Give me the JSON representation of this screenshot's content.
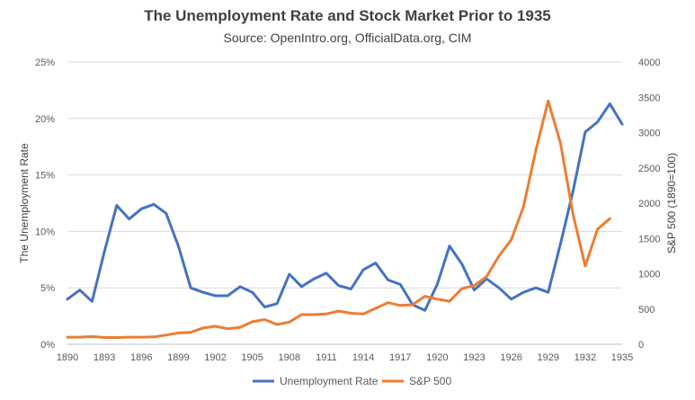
{
  "chart_data": {
    "type": "line",
    "title": "The Unemployment Rate  and Stock Market Prior to 1935",
    "subtitle": "Source: OpenIntro.org, OfficialData.org, CIM",
    "ylabel": "The Unemployment Rate",
    "y2label": "S&P 500 (1890=100)",
    "xlabel": "",
    "x_ticks": [
      "1890",
      "1893",
      "1896",
      "1899",
      "1902",
      "1905",
      "1908",
      "1911",
      "1914",
      "1917",
      "1920",
      "1923",
      "1926",
      "1929",
      "1932",
      "1935"
    ],
    "y_ticks": [
      "0%",
      "5%",
      "10%",
      "15%",
      "20%",
      "25%"
    ],
    "y2_ticks": [
      "0",
      "500",
      "1000",
      "1500",
      "2000",
      "2500",
      "3000",
      "3500",
      "4000"
    ],
    "ylim": [
      0,
      25
    ],
    "y2lim": [
      0,
      4000
    ],
    "xlim": [
      1890,
      1935
    ],
    "grid": true,
    "legend_position": "bottom",
    "x": [
      1890,
      1891,
      1892,
      1893,
      1894,
      1895,
      1896,
      1897,
      1898,
      1899,
      1900,
      1901,
      1902,
      1903,
      1904,
      1905,
      1906,
      1907,
      1908,
      1909,
      1910,
      1911,
      1912,
      1913,
      1914,
      1915,
      1916,
      1917,
      1918,
      1919,
      1920,
      1921,
      1922,
      1923,
      1924,
      1925,
      1926,
      1927,
      1928,
      1929,
      1930,
      1931,
      1932,
      1933,
      1934,
      1935
    ],
    "series": [
      {
        "name": "Unemployment Rate",
        "axis": "left",
        "color": "#4472C4",
        "values": [
          4.0,
          4.8,
          3.8,
          8.2,
          12.3,
          11.1,
          12.0,
          12.4,
          11.6,
          8.7,
          5.0,
          4.6,
          4.3,
          4.3,
          5.1,
          4.6,
          3.3,
          3.6,
          6.2,
          5.1,
          5.8,
          6.3,
          5.2,
          4.9,
          6.6,
          7.2,
          5.7,
          5.3,
          3.5,
          3.0,
          5.3,
          8.7,
          7.1,
          4.8,
          5.8,
          5.0,
          4.0,
          4.6,
          5.0,
          4.6,
          8.9,
          13.5,
          18.8,
          19.7,
          21.3,
          19.5
        ]
      },
      {
        "name": "S&P 500",
        "axis": "right",
        "color": "#ED7D31",
        "values": [
          100,
          100,
          110,
          95,
          95,
          100,
          100,
          105,
          130,
          160,
          170,
          230,
          255,
          220,
          240,
          320,
          350,
          280,
          315,
          420,
          420,
          430,
          470,
          440,
          430,
          510,
          590,
          550,
          560,
          680,
          640,
          610,
          790,
          830,
          960,
          1250,
          1480,
          1950,
          2750,
          3450,
          2850,
          1850,
          1110,
          1630,
          1780,
          null
        ]
      }
    ]
  }
}
